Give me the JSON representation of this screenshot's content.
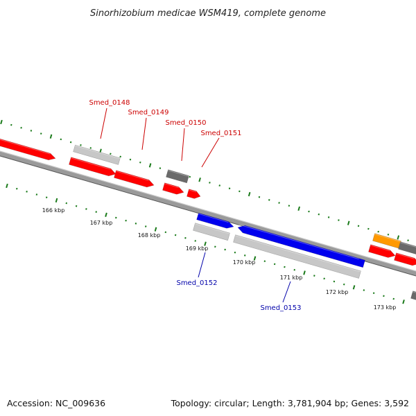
{
  "title": "Sinorhizobium medicae WSM419, complete genome",
  "footer": {
    "accession": "Accession: NC_009636",
    "summary": "Topology: circular; Length: 3,781,904 bp; Genes: 3,592"
  },
  "colors": {
    "backbone": "#888888",
    "tick_green": "#1a7a1a",
    "gene_red": "#ff0000",
    "gene_blue": "#0000ee",
    "gene_gray": "#c7c7c7",
    "gene_darkgray": "#6a6a6a",
    "gene_orange": "#ff9900",
    "label_red": "#cc0000",
    "label_blue": "#0000aa"
  },
  "kbp_ticks": [
    "166 kbp",
    "167 kbp",
    "168 kbp",
    "169 kbp",
    "170 kbp",
    "171 kbp",
    "172 kbp",
    "173 kbp"
  ],
  "gene_labels": [
    {
      "text": "Smed_0148",
      "side": "top"
    },
    {
      "text": "Smed_0149",
      "side": "top"
    },
    {
      "text": "Smed_0150",
      "side": "top"
    },
    {
      "text": "Smed_0151",
      "side": "top"
    },
    {
      "text": "Smed_0152",
      "side": "bottom"
    },
    {
      "text": "Smed_0153",
      "side": "bottom"
    }
  ]
}
